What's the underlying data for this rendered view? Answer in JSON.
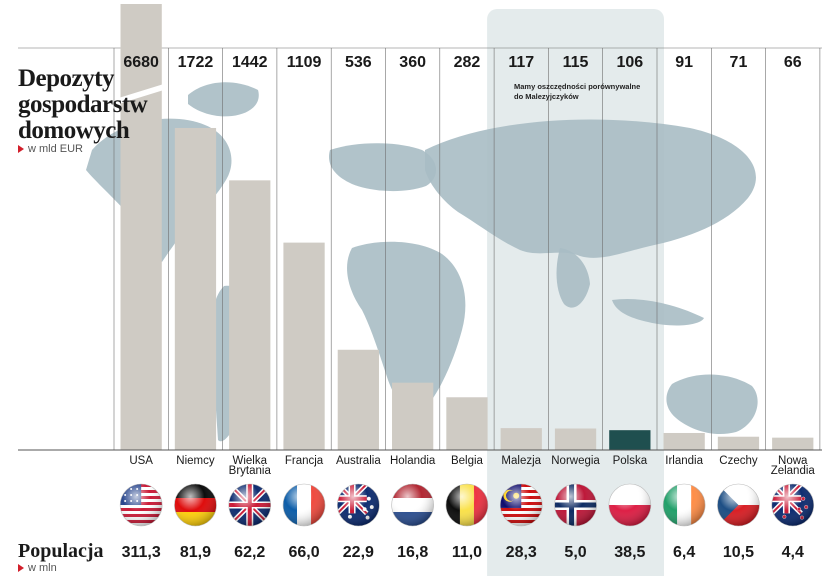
{
  "title": "Depozyty gospodarstw domowych",
  "unit_label": "w mld EUR",
  "annotation": "Mamy oszczędności porównywalne do Malezyjczyków",
  "population_title": "Populacja",
  "population_unit": "w mln",
  "colors": {
    "bar": "#cfcbc4",
    "highlight_bar": "#1f4f4f",
    "map": "#a9bcc4",
    "highlight_panel": "#e4ebec",
    "divider": "#6f6f6f",
    "title_red": "#d21f2b"
  },
  "chart_data": {
    "type": "bar",
    "categories": [
      "USA",
      "Niemcy",
      "Wielka Brytania",
      "Francja",
      "Australia",
      "Holandia",
      "Belgia",
      "Malezja",
      "Norwegia",
      "Polska",
      "Irlandia",
      "Czechy",
      "Nowa Zelandia"
    ],
    "category_lines": [
      [
        "USA"
      ],
      [
        "Niemcy"
      ],
      [
        "Wielka",
        "Brytania"
      ],
      [
        "Francja"
      ],
      [
        "Australia"
      ],
      [
        "Holandia"
      ],
      [
        "Belgia"
      ],
      [
        "Malezja"
      ],
      [
        "Norwegia"
      ],
      [
        "Polska"
      ],
      [
        "Irlandia"
      ],
      [
        "Czechy"
      ],
      [
        "Nowa",
        "Zelandia"
      ]
    ],
    "series": [
      {
        "values": [
          6680,
          1722,
          1442,
          1109,
          536,
          360,
          282,
          117,
          115,
          106,
          91,
          71,
          66
        ],
        "value_labels": [
          "6680",
          "1722",
          "1442",
          "1109",
          "536",
          "360",
          "282",
          "117",
          "115",
          "106",
          "91",
          "71",
          "66"
        ]
      }
    ],
    "population": [
      311.3,
      81.9,
      62.2,
      66.0,
      22.9,
      16.8,
      11.0,
      28.3,
      5.0,
      38.5,
      6.4,
      10.5,
      4.4
    ],
    "population_labels": [
      "311,3",
      "81,9",
      "62,2",
      "66,0",
      "22,9",
      "16,8",
      "11,0",
      "28,3",
      "5,0",
      "38,5",
      "6,4",
      "10,5",
      "4,4"
    ],
    "highlight_categories": [
      "Malezja",
      "Norwegia",
      "Polska"
    ],
    "accent_category": "Polska",
    "broken_bar": "USA",
    "ylim": [
      0,
      2000
    ],
    "grid": false,
    "flags": [
      "flag-usa",
      "flag-germany",
      "flag-uk",
      "flag-france",
      "flag-australia",
      "flag-netherlands",
      "flag-belgium",
      "flag-malaysia",
      "flag-norway",
      "flag-poland",
      "flag-ireland",
      "flag-czechia",
      "flag-new-zealand"
    ]
  }
}
